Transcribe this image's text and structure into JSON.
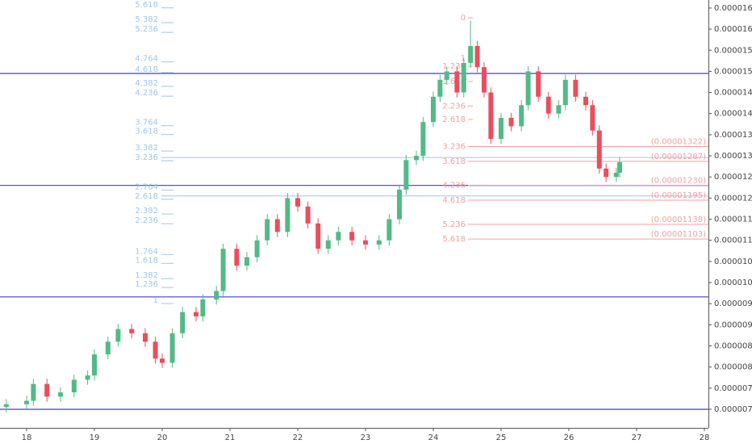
{
  "chart_data": {
    "type": "candlestick",
    "up_color": "#53b987",
    "down_color": "#eb4d5c",
    "x": [
      17.7,
      18.0,
      18.1,
      18.3,
      18.5,
      18.7,
      18.9,
      19.0,
      19.2,
      19.35,
      19.55,
      19.75,
      19.9,
      20.0,
      20.15,
      20.3,
      20.5,
      20.6,
      20.8,
      20.9,
      21.1,
      21.25,
      21.4,
      21.55,
      21.7,
      21.85,
      22.0,
      22.15,
      22.3,
      22.45,
      22.6,
      22.8,
      23.0,
      23.2,
      23.35,
      23.5,
      23.6,
      23.75,
      23.85,
      24.0,
      24.1,
      24.2,
      24.35,
      24.45,
      24.55,
      24.65,
      24.75,
      24.85,
      25.0,
      25.15,
      25.3,
      25.4,
      25.55,
      25.7,
      25.85,
      25.95,
      26.1,
      26.25,
      26.35,
      26.45,
      26.55,
      26.7,
      26.75
    ],
    "open": [
      7.05e-06,
      7.12e-06,
      7.2e-06,
      7.6e-06,
      7.3e-06,
      7.4e-06,
      7.7e-06,
      7.8e-06,
      8.3e-06,
      8.6e-06,
      8.9e-06,
      8.8e-06,
      8.6e-06,
      8.2e-06,
      8.1e-06,
      8.8e-06,
      9.3e-06,
      9.2e-06,
      9.6e-06,
      9.8e-06,
      1.08e-05,
      1.04e-05,
      1.06e-05,
      1.1e-05,
      1.15e-05,
      1.12e-05,
      1.2e-05,
      1.18e-05,
      1.14e-05,
      1.08e-05,
      1.1e-05,
      1.12e-05,
      1.1e-05,
      1.09e-05,
      1.1e-05,
      1.15e-05,
      1.22e-05,
      1.29e-05,
      1.3e-05,
      1.38e-05,
      1.44e-05,
      1.48e-05,
      1.5e-05,
      1.45e-05,
      1.52e-05,
      1.56e-05,
      1.51e-05,
      1.45e-05,
      1.34e-05,
      1.39e-05,
      1.37e-05,
      1.42e-05,
      1.5e-05,
      1.44e-05,
      1.4e-05,
      1.42e-05,
      1.48e-05,
      1.44e-05,
      1.42e-05,
      1.36e-05,
      1.27e-05,
      1.25e-05,
      1.26e-05
    ],
    "high": [
      7.24e-06,
      7.32e-06,
      7.72e-06,
      7.72e-06,
      7.52e-06,
      7.82e-06,
      7.92e-06,
      8.42e-06,
      8.72e-06,
      9.02e-06,
      9.02e-06,
      8.92e-06,
      8.72e-06,
      8.32e-06,
      8.92e-06,
      9.42e-06,
      9.42e-06,
      9.72e-06,
      9.92e-06,
      1.092e-05,
      1.092e-05,
      1.072e-05,
      1.112e-05,
      1.162e-05,
      1.162e-05,
      1.212e-05,
      1.212e-05,
      1.192e-05,
      1.152e-05,
      1.112e-05,
      1.132e-05,
      1.132e-05,
      1.112e-05,
      1.112e-05,
      1.162e-05,
      1.232e-05,
      1.302e-05,
      1.312e-05,
      1.392e-05,
      1.452e-05,
      1.492e-05,
      1.512e-05,
      1.512e-05,
      1.532e-05,
      1.62e-05,
      1.572e-05,
      1.522e-05,
      1.462e-05,
      1.402e-05,
      1.402e-05,
      1.432e-05,
      1.512e-05,
      1.512e-05,
      1.452e-05,
      1.432e-05,
      1.492e-05,
      1.492e-05,
      1.452e-05,
      1.432e-05,
      1.372e-05,
      1.282e-05,
      1.272e-05,
      1.297e-05
    ],
    "low": [
      6.93e-06,
      7e-06,
      7.08e-06,
      7.18e-06,
      7.18e-06,
      7.28e-06,
      7.58e-06,
      7.68e-06,
      8.18e-06,
      8.48e-06,
      8.68e-06,
      8.48e-06,
      8.08e-06,
      7.98e-06,
      7.98e-06,
      8.68e-06,
      9.08e-06,
      9.08e-06,
      9.48e-06,
      9.68e-06,
      1.028e-05,
      1.028e-05,
      1.048e-05,
      1.088e-05,
      1.108e-05,
      1.108e-05,
      1.168e-05,
      1.128e-05,
      1.068e-05,
      1.068e-05,
      1.088e-05,
      1.088e-05,
      1.078e-05,
      1.078e-05,
      1.088e-05,
      1.138e-05,
      1.208e-05,
      1.278e-05,
      1.288e-05,
      1.368e-05,
      1.428e-05,
      1.468e-05,
      1.438e-05,
      1.438e-05,
      1.508e-05,
      1.498e-05,
      1.438e-05,
      1.328e-05,
      1.328e-05,
      1.358e-05,
      1.358e-05,
      1.408e-05,
      1.428e-05,
      1.388e-05,
      1.388e-05,
      1.408e-05,
      1.428e-05,
      1.408e-05,
      1.348e-05,
      1.258e-05,
      1.238e-05,
      1.238e-05,
      1.248e-05
    ],
    "close": [
      7.12e-06,
      7.2e-06,
      7.6e-06,
      7.3e-06,
      7.4e-06,
      7.7e-06,
      7.8e-06,
      8.3e-06,
      8.6e-06,
      8.9e-06,
      8.8e-06,
      8.6e-06,
      8.2e-06,
      8.1e-06,
      8.8e-06,
      9.3e-06,
      9.2e-06,
      9.6e-06,
      9.8e-06,
      1.08e-05,
      1.04e-05,
      1.06e-05,
      1.1e-05,
      1.15e-05,
      1.12e-05,
      1.2e-05,
      1.18e-05,
      1.14e-05,
      1.08e-05,
      1.1e-05,
      1.12e-05,
      1.1e-05,
      1.09e-05,
      1.1e-05,
      1.15e-05,
      1.22e-05,
      1.29e-05,
      1.3e-05,
      1.38e-05,
      1.44e-05,
      1.48e-05,
      1.5e-05,
      1.45e-05,
      1.52e-05,
      1.56e-05,
      1.51e-05,
      1.45e-05,
      1.34e-05,
      1.39e-05,
      1.37e-05,
      1.42e-05,
      1.5e-05,
      1.44e-05,
      1.4e-05,
      1.42e-05,
      1.48e-05,
      1.44e-05,
      1.42e-05,
      1.36e-05,
      1.27e-05,
      1.25e-05,
      1.26e-05,
      1.285e-05
    ],
    "xlim": [
      17.607,
      28.06
    ],
    "xticks": [
      18,
      19,
      20,
      21,
      22,
      23,
      24,
      25,
      26,
      27,
      28
    ],
    "ylim": [
      6.56e-06,
      1.669e-05
    ],
    "yticks": [
      {
        "value": 7e-06,
        "label": "0.00000700"
      },
      {
        "value": 7.5e-06,
        "label": "0.00000750"
      },
      {
        "value": 8e-06,
        "label": "0.00000800"
      },
      {
        "value": 8.5e-06,
        "label": "0.00000850"
      },
      {
        "value": 9e-06,
        "label": "0.00000900"
      },
      {
        "value": 9.5e-06,
        "label": "0.00000950"
      },
      {
        "value": 1e-05,
        "label": "0.00001000"
      },
      {
        "value": 1.05e-05,
        "label": "0.00001050"
      },
      {
        "value": 1.1e-05,
        "label": "0.00001100"
      },
      {
        "value": 1.15e-05,
        "label": "0.00001150"
      },
      {
        "value": 1.2e-05,
        "label": "0.00001200"
      },
      {
        "value": 1.25e-05,
        "label": "0.00001250"
      },
      {
        "value": 1.3e-05,
        "label": "0.00001300"
      },
      {
        "value": 1.35e-05,
        "label": "0.00001350"
      },
      {
        "value": 1.4e-05,
        "label": "0.00001400"
      },
      {
        "value": 1.45e-05,
        "label": "0.00001450"
      },
      {
        "value": 1.5e-05,
        "label": "0.00001500"
      },
      {
        "value": 1.55e-05,
        "label": "0.00001550"
      },
      {
        "value": 1.6e-05,
        "label": "0.00001600"
      },
      {
        "value": 1.65e-05,
        "label": "0.00001650"
      }
    ],
    "level_color": "#3f3fd8",
    "levels": [
      1.495e-05,
      1.23e-05,
      9.66e-06,
      7e-06
    ],
    "fib_up": {
      "color": "#9fc5e8",
      "levels": [
        {
          "ratio": "5.618",
          "price": 1.658e-05
        },
        {
          "ratio": "5.382",
          "price": 1.623e-05
        },
        {
          "ratio": "5.236",
          "price": 1.6e-05
        },
        {
          "ratio": "4.764",
          "price": 1.53e-05
        },
        {
          "ratio": "4.618",
          "price": 1.505e-05
        },
        {
          "ratio": "4.382",
          "price": 1.472e-05
        },
        {
          "ratio": "4.236",
          "price": 1.449e-05
        },
        {
          "ratio": "3.764",
          "price": 1.379e-05
        },
        {
          "ratio": "3.618",
          "price": 1.358e-05
        },
        {
          "ratio": "3.382",
          "price": 1.319e-05
        },
        {
          "ratio": "3.236",
          "price": 1.296e-05,
          "line": true
        },
        {
          "ratio": "2.764",
          "price": 1.227e-05
        },
        {
          "ratio": "2.618",
          "price": 1.205e-05,
          "line": true
        },
        {
          "ratio": "2.382",
          "price": 1.17e-05
        },
        {
          "ratio": "2.236",
          "price": 1.147e-05
        },
        {
          "ratio": "1.764",
          "price": 1.074e-05
        },
        {
          "ratio": "1.618",
          "price": 1.053e-05
        },
        {
          "ratio": "1.382",
          "price": 1.017e-05
        },
        {
          "ratio": "1.236",
          "price": 9.96e-06
        },
        {
          "ratio": "1",
          "price": 9.58e-06
        }
      ]
    },
    "fib_down": {
      "color": "#f0a0a0",
      "levels": [
        {
          "ratio": "0",
          "price": 1.627e-05
        },
        {
          "ratio": "1",
          "price": 1.531e-05
        },
        {
          "ratio": "1.236",
          "price": 1.512e-05
        },
        {
          "ratio": "1.618",
          "price": 1.476e-05
        },
        {
          "ratio": "2.236",
          "price": 1.418e-05
        },
        {
          "ratio": "2.618",
          "price": 1.386e-05
        },
        {
          "ratio": "3.236",
          "price": 1.322e-05,
          "price_label": "(0.00001322)"
        },
        {
          "ratio": "3.618",
          "price": 1.287e-05,
          "price_label": "(0.00001287)"
        },
        {
          "ratio": "4.236",
          "price": 1.23e-05,
          "price_label": "(0.00001230)"
        },
        {
          "ratio": "4.618",
          "price": 1.195e-05,
          "price_label": "(0.00001195)"
        },
        {
          "ratio": "5.236",
          "price": 1.138e-05,
          "price_label": "(0.00001138)"
        },
        {
          "ratio": "5.618",
          "price": 1.103e-05,
          "price_label": "(0.00001103)"
        }
      ]
    }
  }
}
